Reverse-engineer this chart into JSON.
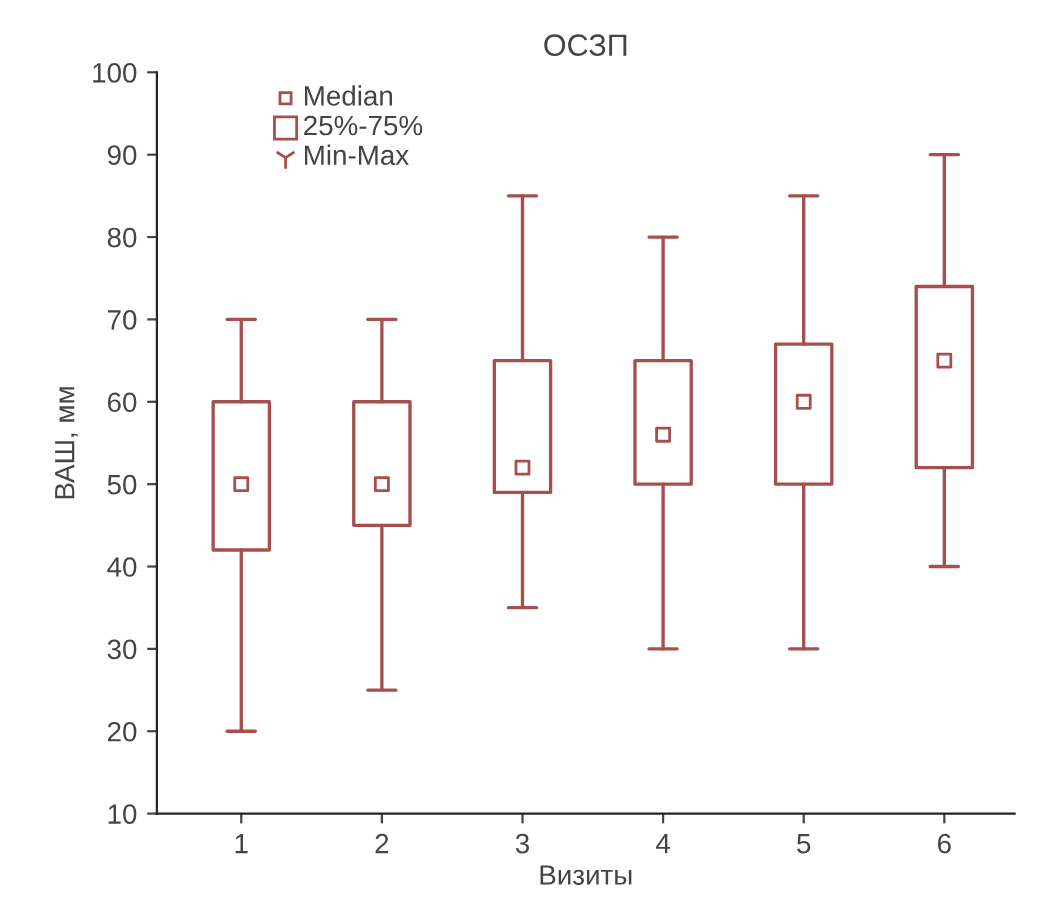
{
  "chart_data": {
    "type": "box",
    "title": "ОСЗП",
    "xlabel": "Визиты",
    "ylabel": "ВАШ, мм",
    "categories": [
      "1",
      "2",
      "3",
      "4",
      "5",
      "6"
    ],
    "boxes": [
      {
        "low": 20,
        "q1": 42,
        "median": 50,
        "q3": 60,
        "high": 70
      },
      {
        "low": 25,
        "q1": 45,
        "median": 50,
        "q3": 60,
        "high": 70
      },
      {
        "low": 35,
        "q1": 49,
        "median": 52,
        "q3": 65,
        "high": 85
      },
      {
        "low": 30,
        "q1": 50,
        "median": 56,
        "q3": 65,
        "high": 80
      },
      {
        "low": 30,
        "q1": 50,
        "median": 60,
        "q3": 67,
        "high": 85
      },
      {
        "low": 40,
        "q1": 52,
        "median": 65,
        "q3": 74,
        "high": 90
      }
    ],
    "color": "#a5504c",
    "ylim": [
      10,
      100
    ],
    "yticks": [
      10,
      20,
      30,
      40,
      50,
      60,
      70,
      80,
      90,
      100
    ],
    "grid": false,
    "marker": "square",
    "annotations": [
      "Median",
      "25%-75%",
      "Min-Max"
    ]
  }
}
